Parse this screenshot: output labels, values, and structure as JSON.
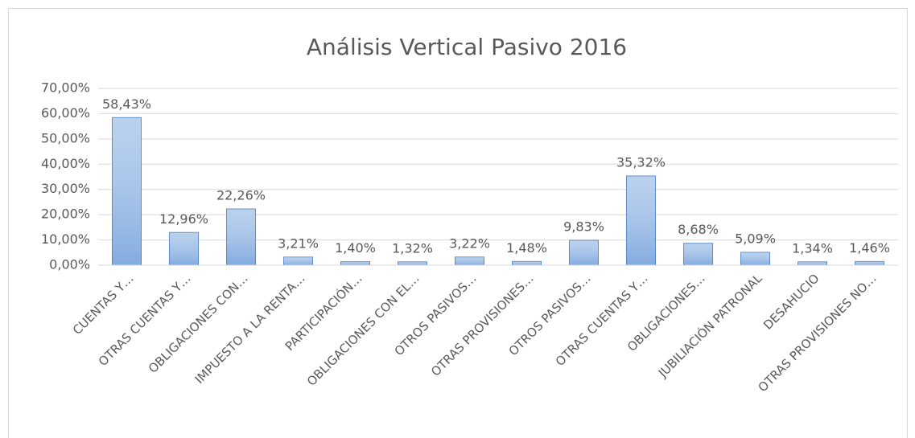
{
  "chart_data": {
    "type": "bar",
    "title": "Análisis Vertical Pasivo 2016",
    "categories": [
      "CUENTAS Y…",
      "OTRAS CUENTAS Y…",
      "OBLIGACIONES CON…",
      "IMPUESTO A LA RENTA…",
      "PARTICIPACIÓN…",
      "OBLIGACIONES CON EL…",
      "OTROS PASIVOS…",
      "OTRAS PROVISIONES…",
      "OTROS PASIVOS…",
      "OTRAS CUENTAS Y…",
      "OBLIGACIONES…",
      "JUBILIACIÓN PATRONAL",
      "DESAHUCIO",
      "OTRAS PROVISIONES NO…"
    ],
    "values": [
      58.43,
      12.96,
      22.26,
      3.21,
      1.4,
      1.32,
      3.22,
      1.48,
      9.83,
      35.32,
      8.68,
      5.09,
      1.34,
      1.46
    ],
    "value_labels": [
      "58,43%",
      "12,96%",
      "22,26%",
      "3,21%",
      "1,40%",
      "1,32%",
      "3,22%",
      "1,48%",
      "9,83%",
      "35,32%",
      "8,68%",
      "5,09%",
      "1,34%",
      "1,46%"
    ],
    "color": "#a4c2e8",
    "ylim": [
      0,
      70
    ],
    "yticks": [
      {
        "value": 0,
        "label": "0,00%"
      },
      {
        "value": 10,
        "label": "10,00%"
      },
      {
        "value": 20,
        "label": "20,00%"
      },
      {
        "value": 30,
        "label": "30,00%"
      },
      {
        "value": 40,
        "label": "40,00%"
      },
      {
        "value": 50,
        "label": "50,00%"
      },
      {
        "value": 60,
        "label": "60,00%"
      },
      {
        "value": 70,
        "label": "70,00%"
      }
    ],
    "grid": true
  }
}
